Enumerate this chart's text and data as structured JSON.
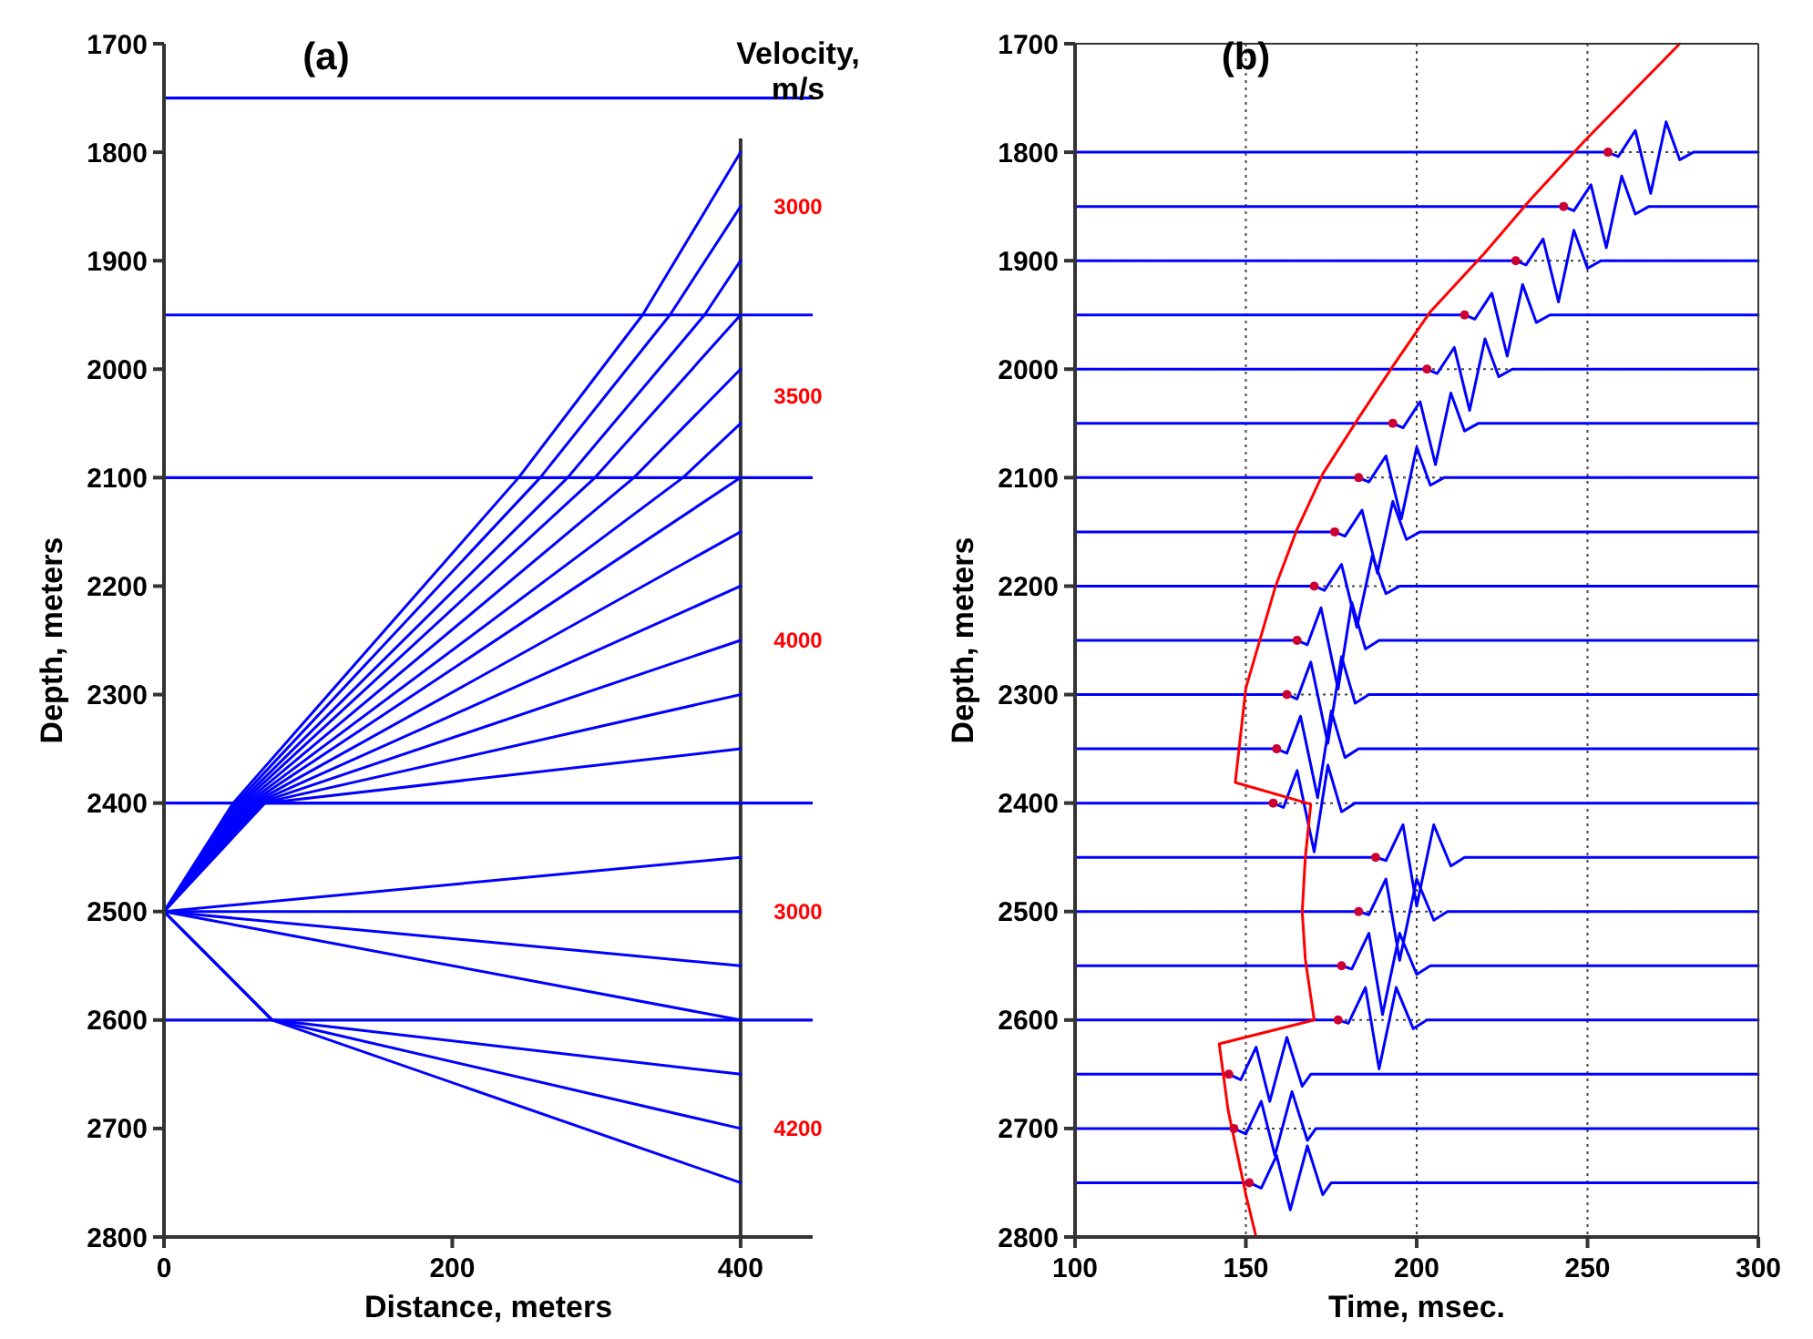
{
  "chart_data": [
    {
      "type": "line",
      "title": "(a)",
      "xlabel": "Distance, meters",
      "ylabel": "Depth, meters",
      "xlim": [
        0,
        450
      ],
      "ylim": [
        2800,
        1700
      ],
      "xticks": [
        0,
        200,
        400
      ],
      "yticks": [
        1700,
        1800,
        1900,
        2000,
        2100,
        2200,
        2300,
        2400,
        2500,
        2600,
        2700,
        2800
      ],
      "grid": false,
      "ref_lines": [
        {
          "axis": "y",
          "value": 1750,
          "color": "#0000ff"
        },
        {
          "axis": "y",
          "value": 1950,
          "color": "#0000ff"
        },
        {
          "axis": "y",
          "value": 2100,
          "color": "#0000ff"
        },
        {
          "axis": "y",
          "value": 2400,
          "color": "#0000ff"
        },
        {
          "axis": "y",
          "value": 2600,
          "color": "#0000ff"
        },
        {
          "axis": "x",
          "value": 400,
          "color": "#333333"
        }
      ],
      "annotations": [
        "Velocity, m/s",
        "3000",
        "3500",
        "4000",
        "3000",
        "4200"
      ],
      "series": [
        {
          "color": "#0000ff",
          "x": [
            0,
            48,
            246,
            332,
            400
          ],
          "values": [
            2500,
            2400,
            2100,
            1950,
            1800
          ]
        },
        {
          "color": "#0000ff",
          "x": [
            0,
            50,
            261,
            351,
            400
          ],
          "values": [
            2500,
            2400,
            2100,
            1950,
            1850
          ]
        },
        {
          "color": "#0000ff",
          "x": [
            0,
            52,
            280,
            375,
            400
          ],
          "values": [
            2500,
            2400,
            2100,
            1950,
            1900
          ]
        },
        {
          "color": "#0000ff",
          "x": [
            0,
            54,
            299,
            400
          ],
          "values": [
            2500,
            2400,
            2100,
            1950
          ]
        },
        {
          "color": "#0000ff",
          "x": [
            0,
            56,
            326,
            400
          ],
          "values": [
            2500,
            2400,
            2100,
            2000
          ]
        },
        {
          "color": "#0000ff",
          "x": [
            0,
            58,
            360,
            400
          ],
          "values": [
            2500,
            2400,
            2100,
            2050
          ]
        },
        {
          "color": "#0000ff",
          "x": [
            0,
            60,
            400
          ],
          "values": [
            2500,
            2400,
            2100
          ]
        },
        {
          "color": "#0000ff",
          "x": [
            0,
            62,
            400
          ],
          "values": [
            2500,
            2400,
            2150
          ]
        },
        {
          "color": "#0000ff",
          "x": [
            0,
            64,
            400
          ],
          "values": [
            2500,
            2400,
            2200
          ]
        },
        {
          "color": "#0000ff",
          "x": [
            0,
            66,
            400
          ],
          "values": [
            2500,
            2400,
            2250
          ]
        },
        {
          "color": "#0000ff",
          "x": [
            0,
            68,
            400
          ],
          "values": [
            2500,
            2400,
            2300
          ]
        },
        {
          "color": "#0000ff",
          "x": [
            0,
            70,
            400
          ],
          "values": [
            2500,
            2400,
            2350
          ]
        },
        {
          "color": "#0000ff",
          "x": [
            0,
            60,
            400
          ],
          "values": [
            2500,
            2400,
            2400
          ]
        },
        {
          "color": "#0000ff",
          "x": [
            0,
            400
          ],
          "values": [
            2500,
            2450
          ]
        },
        {
          "color": "#0000ff",
          "x": [
            0,
            400
          ],
          "values": [
            2500,
            2500
          ]
        },
        {
          "color": "#0000ff",
          "x": [
            0,
            400
          ],
          "values": [
            2500,
            2550
          ]
        },
        {
          "color": "#0000ff",
          "x": [
            0,
            400
          ],
          "values": [
            2500,
            2600
          ]
        },
        {
          "color": "#0000ff",
          "x": [
            0,
            75,
            400
          ],
          "values": [
            2500,
            2600,
            2650
          ]
        },
        {
          "color": "#0000ff",
          "x": [
            0,
            75,
            400
          ],
          "values": [
            2500,
            2600,
            2700
          ]
        },
        {
          "color": "#0000ff",
          "x": [
            0,
            75,
            400
          ],
          "values": [
            2500,
            2600,
            2750
          ]
        }
      ]
    },
    {
      "type": "line",
      "title": "(b)",
      "xlabel": "Time, msec.",
      "ylabel": "Depth, meters",
      "xlim": [
        100,
        300
      ],
      "ylim": [
        2800,
        1700
      ],
      "xticks": [
        100,
        150,
        200,
        250,
        300
      ],
      "yticks": [
        1700,
        1800,
        1900,
        2000,
        2100,
        2200,
        2300,
        2400,
        2500,
        2600,
        2700,
        2800
      ],
      "grid": true,
      "series": [
        {
          "color": "#0000ff",
          "x": [
            100,
            256,
            259,
            264,
            268.5,
            273,
            277,
            281,
            300
          ],
          "values": [
            1800,
            1800,
            1804,
            1780,
            1838,
            1772,
            1807,
            1800,
            1800
          ]
        },
        {
          "color": "#0000ff",
          "x": [
            100,
            243,
            246,
            251,
            255.5,
            260,
            264,
            268,
            300
          ],
          "values": [
            1850,
            1850,
            1854,
            1830,
            1888,
            1822,
            1857,
            1850,
            1850
          ]
        },
        {
          "color": "#0000ff",
          "x": [
            100,
            229,
            232,
            237,
            241.5,
            246,
            250,
            254,
            300
          ],
          "values": [
            1900,
            1900,
            1904,
            1880,
            1938,
            1872,
            1907,
            1900,
            1900
          ]
        },
        {
          "color": "#0000ff",
          "x": [
            100,
            214,
            217,
            222,
            226.5,
            231,
            235,
            239,
            300
          ],
          "values": [
            1950,
            1950,
            1954,
            1930,
            1988,
            1922,
            1957,
            1950,
            1950
          ]
        },
        {
          "color": "#0000ff",
          "x": [
            100,
            203,
            206,
            211,
            215.5,
            220,
            224,
            228,
            300
          ],
          "values": [
            2000,
            2000,
            2004,
            1980,
            2038,
            1972,
            2007,
            2000,
            2000
          ]
        },
        {
          "color": "#0000ff",
          "x": [
            100,
            193,
            196,
            201,
            205.5,
            210,
            214,
            218,
            300
          ],
          "values": [
            2050,
            2050,
            2054,
            2030,
            2088,
            2022,
            2057,
            2050,
            2050
          ]
        },
        {
          "color": "#0000ff",
          "x": [
            100,
            183,
            186,
            191,
            195.5,
            200,
            204,
            208,
            300
          ],
          "values": [
            2100,
            2100,
            2104,
            2080,
            2138,
            2072,
            2107,
            2100,
            2100
          ]
        },
        {
          "color": "#0000ff",
          "x": [
            100,
            176,
            179,
            184,
            188.5,
            193,
            197,
            201,
            300
          ],
          "values": [
            2150,
            2150,
            2154,
            2130,
            2188,
            2122,
            2157,
            2150,
            2150
          ]
        },
        {
          "color": "#0000ff",
          "x": [
            100,
            170,
            173,
            178,
            182.5,
            187,
            191,
            195,
            300
          ],
          "values": [
            2200,
            2200,
            2204,
            2180,
            2238,
            2172,
            2207,
            2200,
            2200
          ]
        },
        {
          "color": "#0000ff",
          "x": [
            100,
            165,
            168,
            172,
            177,
            181,
            185,
            189,
            300
          ],
          "values": [
            2250,
            2250,
            2254,
            2220,
            2295,
            2215,
            2258,
            2250,
            2250
          ]
        },
        {
          "color": "#0000ff",
          "x": [
            100,
            162,
            165,
            169,
            174,
            178,
            182,
            186,
            300
          ],
          "values": [
            2300,
            2300,
            2304,
            2270,
            2345,
            2265,
            2308,
            2300,
            2300
          ]
        },
        {
          "color": "#0000ff",
          "x": [
            100,
            159,
            162,
            166,
            171,
            175,
            179,
            183,
            300
          ],
          "values": [
            2350,
            2350,
            2354,
            2320,
            2395,
            2315,
            2358,
            2350,
            2350
          ]
        },
        {
          "color": "#0000ff",
          "x": [
            100,
            158,
            161,
            165,
            170,
            174,
            178,
            182,
            300
          ],
          "values": [
            2400,
            2400,
            2404,
            2370,
            2445,
            2365,
            2408,
            2400,
            2400
          ]
        },
        {
          "color": "#0000ff",
          "x": [
            100,
            188,
            191,
            196,
            200,
            205,
            210,
            214,
            300
          ],
          "values": [
            2450,
            2450,
            2453,
            2420,
            2495,
            2420,
            2458,
            2450,
            2450
          ]
        },
        {
          "color": "#0000ff",
          "x": [
            100,
            183,
            186,
            191,
            195,
            200,
            205,
            209,
            300
          ],
          "values": [
            2500,
            2500,
            2503,
            2470,
            2545,
            2470,
            2508,
            2500,
            2500
          ]
        },
        {
          "color": "#0000ff",
          "x": [
            100,
            178,
            181,
            186,
            190,
            195,
            200,
            204,
            300
          ],
          "values": [
            2550,
            2550,
            2553,
            2520,
            2595,
            2520,
            2558,
            2550,
            2550
          ]
        },
        {
          "color": "#0000ff",
          "x": [
            100,
            177,
            180,
            185,
            189,
            194,
            199,
            203,
            300
          ],
          "values": [
            2600,
            2600,
            2603,
            2570,
            2645,
            2570,
            2608,
            2600,
            2600
          ]
        },
        {
          "color": "#0000ff",
          "x": [
            100,
            145,
            148.5,
            153,
            157,
            162,
            166.5,
            169,
            300
          ],
          "values": [
            2650,
            2650,
            2655,
            2625,
            2675,
            2616,
            2661,
            2650,
            2650
          ]
        },
        {
          "color": "#0000ff",
          "x": [
            100,
            146.5,
            150,
            154.5,
            158.5,
            163.5,
            168,
            170.5,
            300
          ],
          "values": [
            2700,
            2700,
            2705,
            2675,
            2725,
            2666,
            2711,
            2700,
            2700
          ]
        },
        {
          "color": "#0000ff",
          "x": [
            100,
            151,
            154.5,
            159,
            163,
            168,
            172.5,
            175,
            300
          ],
          "values": [
            2750,
            2750,
            2755,
            2725,
            2775,
            2716,
            2761,
            2750,
            2750
          ]
        },
        {
          "color": "#ff0000",
          "x": [
            277,
            249,
            233.5,
            219.6,
            204,
            193.5,
            183,
            172.6,
            164.8,
            158.7,
            150,
            146.9,
            169,
            167.4,
            166.5,
            167.4,
            170,
            142.2,
            144.8,
            150,
            153
          ],
          "values": [
            1700,
            1790,
            1843,
            1894,
            1947,
            1995,
            2045,
            2096,
            2149,
            2200,
            2294,
            2381,
            2401,
            2450,
            2500,
            2544,
            2600,
            2622,
            2683,
            2761,
            2800
          ]
        },
        {
          "type": "scatter",
          "marker": "circle",
          "color": "#cc0033",
          "x": [
            256,
            243,
            229,
            214,
            203,
            193,
            183,
            176,
            170,
            165,
            162,
            159,
            158,
            188,
            183,
            178,
            177,
            145,
            146.5,
            151
          ],
          "values": [
            1800,
            1850,
            1900,
            1950,
            2000,
            2050,
            2100,
            2150,
            2200,
            2250,
            2300,
            2350,
            2400,
            2450,
            2500,
            2550,
            2600,
            2650,
            2700,
            2750
          ]
        }
      ]
    }
  ]
}
